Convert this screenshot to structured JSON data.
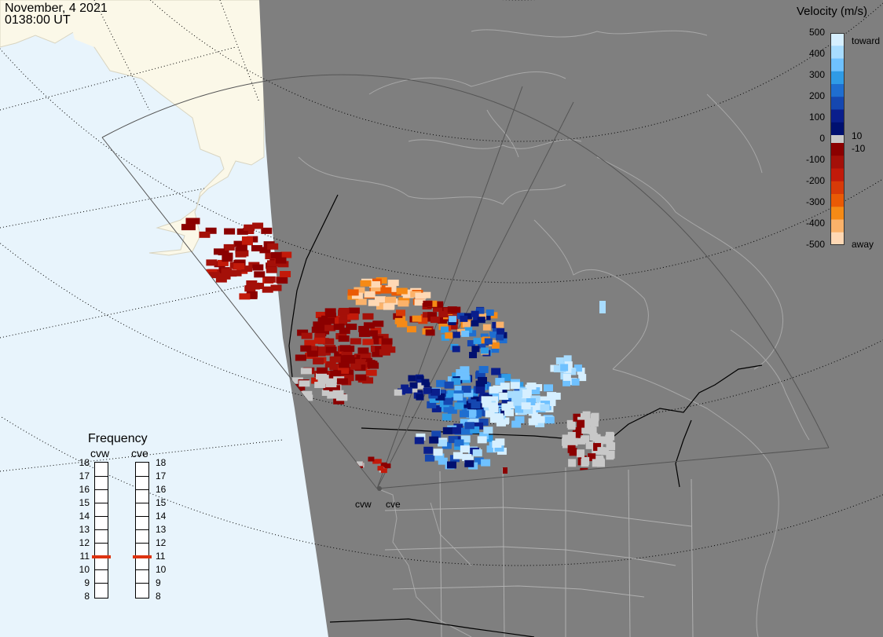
{
  "header": {
    "date": "November, 4 2021",
    "time": "0138:00 UT"
  },
  "colors": {
    "ocean": "#e8f4fc",
    "land": "#fbf8e8",
    "night_shade": "#7f7f7f",
    "coastline": "#a8a8a8",
    "ground_scatter": "#c8c8c8",
    "frequency_marker": "#dd3311"
  },
  "velocity_scale": {
    "title": "Velocity (m/s)",
    "ticks": [
      "500",
      "400",
      "300",
      "200",
      "100",
      "0",
      "-100",
      "-200",
      "-300",
      "-400",
      "-500"
    ],
    "threshold_pos": "10",
    "threshold_neg": "-10",
    "toward_label": "toward",
    "away_label": "away",
    "toward_colors": [
      "#d6efff",
      "#a8dcff",
      "#6fc1ff",
      "#2f9be6",
      "#1f6ed0",
      "#1547b0",
      "#0a1e8c",
      "#001070"
    ],
    "away_colors": [
      "#8b0000",
      "#a41009",
      "#c21a0a",
      "#d83a08",
      "#ea5a05",
      "#f58a16",
      "#fbb26a",
      "#ffd8b4"
    ]
  },
  "frequency": {
    "title": "Frequency",
    "radars": [
      {
        "label": "cvw",
        "value": 11
      },
      {
        "label": "cve",
        "value": 11
      }
    ],
    "ticks": [
      "18",
      "17",
      "16",
      "15",
      "14",
      "13",
      "12",
      "11",
      "10",
      "9",
      "8"
    ]
  },
  "radars": [
    {
      "label": "cvw"
    },
    {
      "label": "cve"
    }
  ]
}
